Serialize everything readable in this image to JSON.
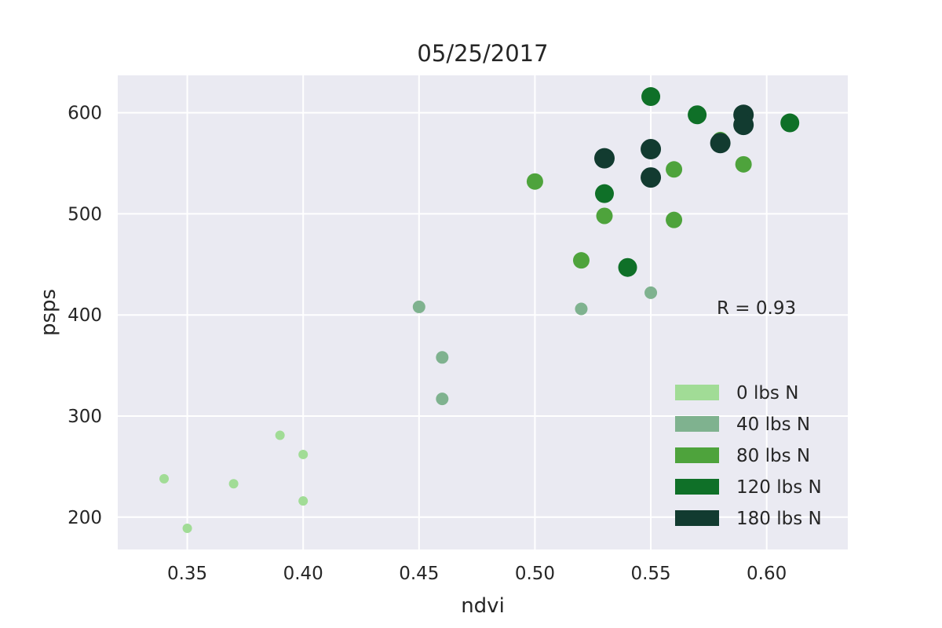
{
  "chart_data": {
    "type": "scatter",
    "title": "05/25/2017",
    "xlabel": "ndvi",
    "ylabel": "psps",
    "xlim": [
      0.32,
      0.635
    ],
    "ylim": [
      168,
      637
    ],
    "xticks": [
      "0.35",
      "0.40",
      "0.45",
      "0.50",
      "0.55",
      "0.60"
    ],
    "xtick_values": [
      0.35,
      0.4,
      0.45,
      0.5,
      0.55,
      0.6
    ],
    "yticks": [
      "200",
      "300",
      "400",
      "500",
      "600"
    ],
    "ytick_values": [
      200,
      300,
      400,
      500,
      600
    ],
    "grid": true,
    "background": "#eaeaf2",
    "legend_position": "lower-right",
    "annotation": "R = 0.93",
    "series": [
      {
        "name": "0 lbs N",
        "color": "#a1dc96",
        "points": [
          {
            "x": 0.34,
            "y": 238
          },
          {
            "x": 0.35,
            "y": 189
          },
          {
            "x": 0.37,
            "y": 233
          },
          {
            "x": 0.39,
            "y": 281
          },
          {
            "x": 0.4,
            "y": 262
          },
          {
            "x": 0.4,
            "y": 216
          }
        ]
      },
      {
        "name": "40 lbs N",
        "color": "#7fb28f",
        "points": [
          {
            "x": 0.45,
            "y": 408
          },
          {
            "x": 0.46,
            "y": 358
          },
          {
            "x": 0.46,
            "y": 317
          },
          {
            "x": 0.52,
            "y": 406
          },
          {
            "x": 0.55,
            "y": 422
          }
        ]
      },
      {
        "name": "80 lbs N",
        "color": "#4ea33c",
        "points": [
          {
            "x": 0.5,
            "y": 532
          },
          {
            "x": 0.52,
            "y": 454
          },
          {
            "x": 0.53,
            "y": 498
          },
          {
            "x": 0.56,
            "y": 544
          },
          {
            "x": 0.56,
            "y": 494
          },
          {
            "x": 0.59,
            "y": 549
          },
          {
            "x": 0.58,
            "y": 573
          }
        ]
      },
      {
        "name": "120 lbs N",
        "color": "#0f7028",
        "points": [
          {
            "x": 0.55,
            "y": 616
          },
          {
            "x": 0.57,
            "y": 598
          },
          {
            "x": 0.61,
            "y": 590
          },
          {
            "x": 0.53,
            "y": 520
          },
          {
            "x": 0.54,
            "y": 447
          }
        ]
      },
      {
        "name": "180 lbs N",
        "color": "#123b30",
        "points": [
          {
            "x": 0.59,
            "y": 598
          },
          {
            "x": 0.59,
            "y": 588
          },
          {
            "x": 0.55,
            "y": 564
          },
          {
            "x": 0.53,
            "y": 555
          },
          {
            "x": 0.55,
            "y": 536
          },
          {
            "x": 0.58,
            "y": 570
          }
        ]
      }
    ]
  }
}
